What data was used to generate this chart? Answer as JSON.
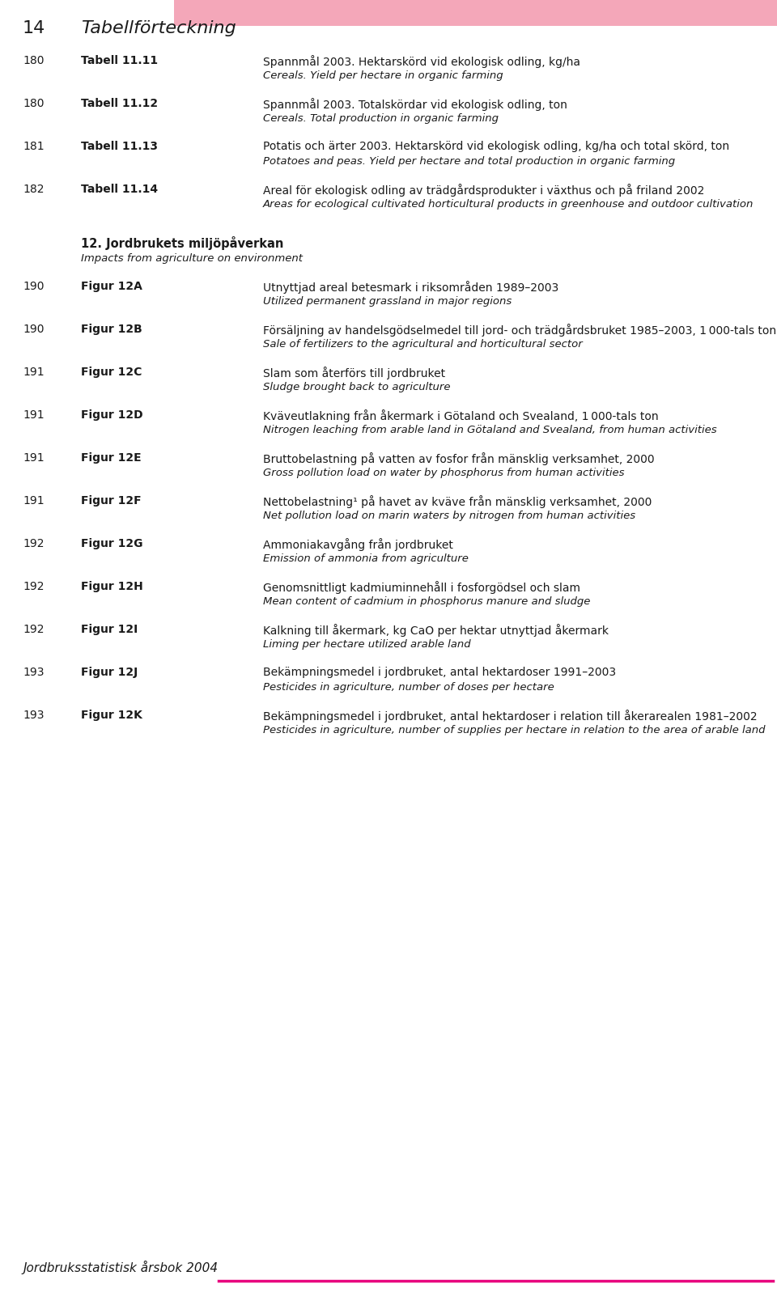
{
  "page_number": "14",
  "page_title": "Tabellförteckning",
  "header_bar_color": "#F4A7B9",
  "footer_line_color": "#E8007D",
  "footer_text": "Jordbruksstatistisk årsbok 2004",
  "background_color": "#FFFFFF",
  "entries": [
    {
      "page": "180",
      "ref": "Tabell 11.11",
      "text_sv": "Spannmål 2003. Hektarskörd vid ekologisk odling, kg/ha",
      "text_en": "Cereals. Yield per hectare in organic farming"
    },
    {
      "page": "180",
      "ref": "Tabell 11.12",
      "text_sv": "Spannmål 2003. Totalskördar vid ekologisk odling, ton",
      "text_en": "Cereals. Total production in organic farming"
    },
    {
      "page": "181",
      "ref": "Tabell 11.13",
      "text_sv": "Potatis och ärter 2003. Hektarskörd vid ekologisk odling, kg/ha och total skörd, ton",
      "text_en": "Potatoes and peas. Yield per hectare and total production in organic farming"
    },
    {
      "page": "182",
      "ref": "Tabell 11.14",
      "text_sv": "Areal för ekologisk odling av trädgårdsprodukter i växthus och på friland 2002",
      "text_en": "Areas for ecological cultivated horticultural products in greenhouse and outdoor cultivation"
    },
    {
      "page": "",
      "ref": "",
      "text_sv": "12. Jordbrukets miljöpåverkan",
      "text_en": "Impacts from agriculture on environment",
      "section_header": true
    },
    {
      "page": "190",
      "ref": "Figur 12A",
      "text_sv": "Utnyttjad areal betesmark i riksområden 1989–2003",
      "text_en": "Utilized permanent grassland in major regions"
    },
    {
      "page": "190",
      "ref": "Figur 12B",
      "text_sv": "Försäljning av handelsgödselmedel till jord- och trädgårdsbruket 1985–2003, 1 000-tals ton",
      "text_en": "Sale of fertilizers to the agricultural and horticultural sector"
    },
    {
      "page": "191",
      "ref": "Figur 12C",
      "text_sv": "Slam som återförs till jordbruket",
      "text_en": "Sludge brought back to agriculture"
    },
    {
      "page": "191",
      "ref": "Figur 12D",
      "text_sv": "Kväveutlakning från åkermark i Götaland och Svealand, 1 000-tals ton",
      "text_en": "Nitrogen leaching from arable land in Götaland and Svealand, from human activities"
    },
    {
      "page": "191",
      "ref": "Figur 12E",
      "text_sv": "Bruttobelastning på vatten av fosfor från mänsklig verksamhet, 2000",
      "text_en": "Gross pollution load on water by phosphorus from human activities"
    },
    {
      "page": "191",
      "ref": "Figur 12F",
      "text_sv": "Nettobelastning¹ på havet av kväve från mänsklig verksamhet, 2000",
      "text_en": "Net pollution load on marin waters by nitrogen from human activities"
    },
    {
      "page": "192",
      "ref": "Figur 12G",
      "text_sv": "Ammoniakavgång från jordbruket",
      "text_en": "Emission of ammonia from agriculture"
    },
    {
      "page": "192",
      "ref": "Figur 12H",
      "text_sv": "Genomsnittligt kadmiuminnehåll i fosforgödsel och slam",
      "text_en": "Mean content of cadmium in phosphorus manure and sludge"
    },
    {
      "page": "192",
      "ref": "Figur 12I",
      "text_sv": "Kalkning till åkermark, kg CaO per hektar utnyttjad åkermark",
      "text_en": "Liming per hectare utilized arable land"
    },
    {
      "page": "193",
      "ref": "Figur 12J",
      "text_sv": "Bekämpningsmedel i jordbruket, antal hektardoser 1991–2003",
      "text_en": "Pesticides in agriculture, number of doses per hectare"
    },
    {
      "page": "193",
      "ref": "Figur 12K",
      "text_sv": "Bekämpningsmedel i jordbruket, antal hektardoser i relation till åkerarealen 1981–2002",
      "text_en": "Pesticides in agriculture, number of supplies per hectare in relation to the area of arable land"
    }
  ],
  "text_color": "#1a1a1a"
}
